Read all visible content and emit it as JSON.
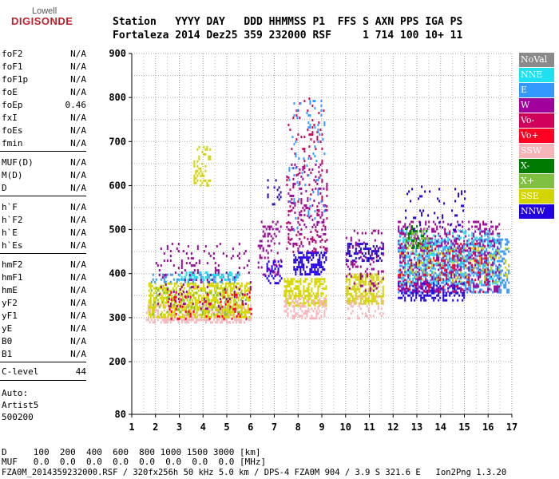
{
  "logo": {
    "line1": "Lowell",
    "line2": "DIGISONDE"
  },
  "header": {
    "row1": "Station   YYYY DAY   DDD HHMMSS P1  FFS S AXN PPS IGA PS",
    "row2": "Fortaleza 2014 Dez25 359 232000 RSF     1 714 100 10+ 11"
  },
  "params": {
    "group1": [
      {
        "name": "foF2",
        "value": "N/A"
      },
      {
        "name": "foF1",
        "value": "N/A"
      },
      {
        "name": "foF1p",
        "value": "N/A"
      },
      {
        "name": "foE",
        "value": "N/A"
      },
      {
        "name": "foEp",
        "value": "0.46"
      },
      {
        "name": "fxI",
        "value": "N/A"
      },
      {
        "name": "foEs",
        "value": "N/A"
      },
      {
        "name": "fmin",
        "value": "N/A"
      }
    ],
    "group2": [
      {
        "name": "MUF(D)",
        "value": "N/A"
      },
      {
        "name": "M(D)",
        "value": "N/A"
      },
      {
        "name": "D",
        "value": "N/A"
      }
    ],
    "group3": [
      {
        "name": "h`F",
        "value": "N/A"
      },
      {
        "name": "h`F2",
        "value": "N/A"
      },
      {
        "name": "h`E",
        "value": "N/A"
      },
      {
        "name": "h`Es",
        "value": "N/A"
      }
    ],
    "group4": [
      {
        "name": "hmF2",
        "value": "N/A"
      },
      {
        "name": "hmF1",
        "value": "N/A"
      },
      {
        "name": "hmE",
        "value": "N/A"
      },
      {
        "name": "yF2",
        "value": "N/A"
      },
      {
        "name": "yF1",
        "value": "N/A"
      },
      {
        "name": "yE",
        "value": "N/A"
      },
      {
        "name": "B0",
        "value": "N/A"
      },
      {
        "name": "B1",
        "value": "N/A"
      }
    ],
    "clevel": {
      "name": "C-level",
      "value": "44"
    }
  },
  "auto": {
    "line1": "Auto:",
    "line2": "Artist5",
    "line3": "500200"
  },
  "legend": [
    {
      "label": "NoVal",
      "color": "#8a8a8a"
    },
    {
      "label": "NNE",
      "color": "#1ee0f0"
    },
    {
      "label": "E",
      "color": "#3399ff"
    },
    {
      "label": "W",
      "color": "#a0009c"
    },
    {
      "label": "Vo-",
      "color": "#d0005a"
    },
    {
      "label": "Vo+",
      "color": "#ff0022"
    },
    {
      "label": "SSW",
      "color": "#f4b4b8"
    },
    {
      "label": "X-",
      "color": "#007a00"
    },
    {
      "label": "X+",
      "color": "#7fc040"
    },
    {
      "label": "SSE",
      "color": "#d4d400"
    },
    {
      "label": "NNW",
      "color": "#2000e0"
    }
  ],
  "footer": {
    "d_row": "D     100  200  400  600  800 1000 1500 3000 [km]",
    "muf_row": "MUF   0.0  0.0  0.0  0.0  0.0  0.0  0.0  0.0 [MHz]",
    "file_row": "FZA0M_2014359232000.RSF / 320fx256h 50 kHz 5.0 km / DPS-4 FZA0M 904 / 3.9 S 321.6 E   Ion2Png 1.3.20"
  },
  "chart_data": {
    "type": "scatter",
    "x_ticks": [
      1,
      2,
      3,
      4,
      5,
      6,
      7,
      8,
      9,
      10,
      11,
      12,
      13,
      14,
      15,
      16,
      17
    ],
    "y_ticks": [
      80,
      200,
      300,
      400,
      500,
      600,
      700,
      800,
      900
    ],
    "xlim": [
      1,
      17
    ],
    "ylim": [
      80,
      900
    ],
    "grid": true,
    "legend_position": "right",
    "clusters": [
      {
        "series": "SSW",
        "x": [
          1.6,
          6.0
        ],
        "y": [
          290,
          330
        ],
        "density": 0.45
      },
      {
        "series": "SSE",
        "x": [
          1.7,
          6.0
        ],
        "y": [
          300,
          380
        ],
        "density": 0.55
      },
      {
        "series": "X+",
        "x": [
          1.8,
          5.8
        ],
        "y": [
          310,
          370
        ],
        "density": 0.12
      },
      {
        "series": "E",
        "x": [
          1.8,
          5.5
        ],
        "y": [
          380,
          400
        ],
        "density": 0.35
      },
      {
        "series": "NNE",
        "x": [
          3.0,
          5.5
        ],
        "y": [
          385,
          405
        ],
        "density": 0.25
      },
      {
        "series": "W",
        "x": [
          2.0,
          6.0
        ],
        "y": [
          320,
          470
        ],
        "density": 0.1
      },
      {
        "series": "Vo+",
        "x": [
          2.5,
          6.0
        ],
        "y": [
          300,
          360
        ],
        "density": 0.08
      },
      {
        "series": "SSE",
        "x": [
          3.6,
          4.3
        ],
        "y": [
          600,
          690
        ],
        "density": 0.25
      },
      {
        "series": "NNW",
        "x": [
          6.6,
          7.3
        ],
        "y": [
          380,
          430
        ],
        "density": 0.35
      },
      {
        "series": "W",
        "x": [
          6.3,
          7.3
        ],
        "y": [
          400,
          520
        ],
        "density": 0.2
      },
      {
        "series": "NNW",
        "x": [
          7.8,
          9.2
        ],
        "y": [
          400,
          450
        ],
        "density": 0.55
      },
      {
        "series": "W",
        "x": [
          7.5,
          9.2
        ],
        "y": [
          450,
          650
        ],
        "density": 0.15
      },
      {
        "series": "Vo-",
        "x": [
          7.5,
          9.2
        ],
        "y": [
          450,
          800
        ],
        "density": 0.06
      },
      {
        "series": "E",
        "x": [
          7.6,
          9.1
        ],
        "y": [
          500,
          800
        ],
        "density": 0.05
      },
      {
        "series": "SSE",
        "x": [
          7.4,
          9.2
        ],
        "y": [
          330,
          390
        ],
        "density": 0.55
      },
      {
        "series": "SSW",
        "x": [
          7.4,
          9.2
        ],
        "y": [
          300,
          350
        ],
        "density": 0.3
      },
      {
        "series": "NNW",
        "x": [
          6.7,
          7.3
        ],
        "y": [
          560,
          620
        ],
        "density": 0.15
      },
      {
        "series": "NNW",
        "x": [
          10.0,
          11.6
        ],
        "y": [
          430,
          470
        ],
        "density": 0.45
      },
      {
        "series": "SSE",
        "x": [
          10.0,
          11.6
        ],
        "y": [
          330,
          400
        ],
        "density": 0.55
      },
      {
        "series": "W",
        "x": [
          10.0,
          11.6
        ],
        "y": [
          360,
          500
        ],
        "density": 0.15
      },
      {
        "series": "SSW",
        "x": [
          10.0,
          11.6
        ],
        "y": [
          300,
          350
        ],
        "density": 0.2
      },
      {
        "series": "E",
        "x": [
          12.2,
          16.9
        ],
        "y": [
          360,
          480
        ],
        "density": 0.4
      },
      {
        "series": "NNW",
        "x": [
          12.2,
          15.0
        ],
        "y": [
          340,
          380
        ],
        "density": 0.35
      },
      {
        "series": "W",
        "x": [
          12.2,
          16.5
        ],
        "y": [
          360,
          520
        ],
        "density": 0.3
      },
      {
        "series": "NNE",
        "x": [
          12.2,
          16.5
        ],
        "y": [
          380,
          500
        ],
        "density": 0.2
      },
      {
        "series": "X-",
        "x": [
          12.5,
          13.5
        ],
        "y": [
          460,
          510
        ],
        "density": 0.3
      },
      {
        "series": "X+",
        "x": [
          12.5,
          13.5
        ],
        "y": [
          460,
          510
        ],
        "density": 0.2
      },
      {
        "series": "SSE",
        "x": [
          12.2,
          16.9
        ],
        "y": [
          380,
          460
        ],
        "density": 0.12
      },
      {
        "series": "NNW",
        "x": [
          12.5,
          15.0
        ],
        "y": [
          500,
          600
        ],
        "density": 0.06
      },
      {
        "series": "Vo+",
        "x": [
          12.2,
          16.0
        ],
        "y": [
          360,
          470
        ],
        "density": 0.08
      }
    ]
  }
}
